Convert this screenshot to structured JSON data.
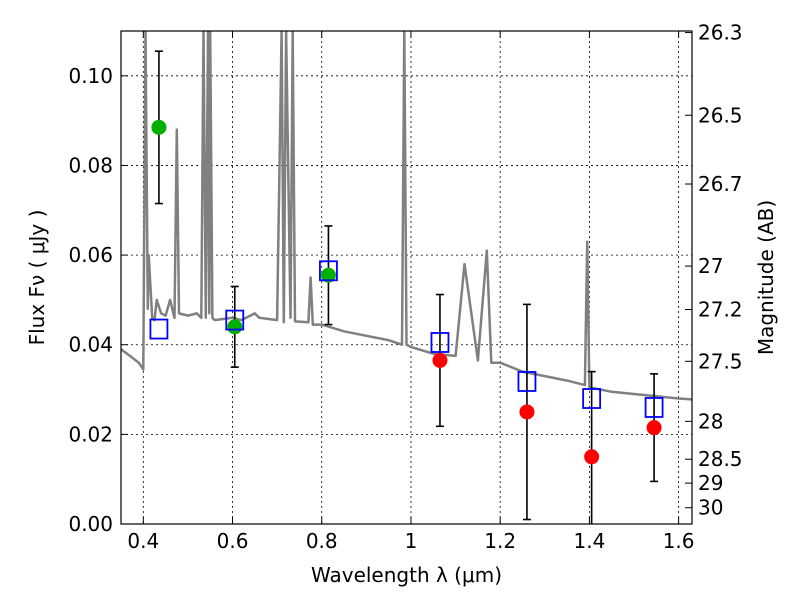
{
  "chart_data": {
    "type": "scatter",
    "title": "",
    "xlabel": "Wavelength  λ (μm)",
    "ylabel": "Flux  Fν  ( μJy )",
    "y2label": "Magnitude (AB)",
    "xlim": [
      0.35,
      1.63
    ],
    "ylim": [
      0.0,
      0.11
    ],
    "grid": true,
    "legend": "none",
    "x_ticks": [
      0.4,
      0.6,
      0.8,
      1.0,
      1.2,
      1.4,
      1.6
    ],
    "x_tick_labels": [
      "0.4",
      "0.6",
      "0.8",
      "1",
      "1.2",
      "1.4",
      "1.6"
    ],
    "y_ticks": [
      0.0,
      0.02,
      0.04,
      0.06,
      0.08,
      0.1
    ],
    "y_tick_labels": [
      "0.00",
      "0.02",
      "0.04",
      "0.06",
      "0.08",
      "0.10"
    ],
    "y2_ticks": [
      26.3,
      26.5,
      26.7,
      27,
      27.2,
      27.5,
      28,
      28.5,
      29,
      30
    ],
    "y2_tick_labels": [
      "26.3",
      "26.5",
      "26.7",
      "27",
      "27.2",
      "27.5",
      "28",
      "28.5",
      "29",
      "30"
    ],
    "series": [
      {
        "type": "line",
        "color": "#808080",
        "x": [
          0.35,
          0.37,
          0.39,
          0.4,
          0.405,
          0.41,
          0.412,
          0.42,
          0.425,
          0.43,
          0.44,
          0.45,
          0.46,
          0.47,
          0.475,
          0.48,
          0.5,
          0.52,
          0.53,
          0.535,
          0.54,
          0.545,
          0.548,
          0.55,
          0.555,
          0.56,
          0.6,
          0.62,
          0.65,
          0.66,
          0.7,
          0.71,
          0.715,
          0.72,
          0.73,
          0.735,
          0.74,
          0.77,
          0.775,
          0.78,
          0.8,
          0.85,
          0.9,
          0.95,
          0.98,
          0.985,
          0.99,
          1.0,
          1.05,
          1.1,
          1.12,
          1.15,
          1.17,
          1.18,
          1.2,
          1.25,
          1.3,
          1.35,
          1.39,
          1.395,
          1.4,
          1.45,
          1.5,
          1.55,
          1.6,
          1.63
        ],
        "y": [
          0.039,
          0.0375,
          0.036,
          0.0345,
          0.11,
          0.048,
          0.06,
          0.046,
          0.0455,
          0.05,
          0.047,
          0.0465,
          0.05,
          0.046,
          0.088,
          0.047,
          0.0465,
          0.047,
          0.046,
          0.11,
          0.046,
          0.11,
          0.047,
          0.11,
          0.046,
          0.0455,
          0.046,
          0.0455,
          0.047,
          0.046,
          0.0455,
          0.11,
          0.045,
          0.11,
          0.046,
          0.11,
          0.0452,
          0.045,
          0.055,
          0.0445,
          0.0445,
          0.043,
          0.042,
          0.041,
          0.04,
          0.11,
          0.04,
          0.0395,
          0.038,
          0.0375,
          0.058,
          0.0365,
          0.061,
          0.036,
          0.036,
          0.034,
          0.033,
          0.032,
          0.031,
          0.063,
          0.0305,
          0.0295,
          0.029,
          0.0285,
          0.028,
          0.0278
        ]
      },
      {
        "type": "scatter",
        "marker": "circle",
        "color": "#00b000",
        "x": [
          0.435,
          0.605,
          0.815
        ],
        "y": [
          0.0885,
          0.044,
          0.0555
        ],
        "yerr": [
          0.017,
          0.009,
          0.011
        ]
      },
      {
        "type": "scatter",
        "marker": "circle",
        "color": "#ff0000",
        "x": [
          1.065,
          1.26,
          1.405,
          1.545
        ],
        "y": [
          0.0365,
          0.025,
          0.015,
          0.0215
        ],
        "yerr": [
          0.0147,
          0.024,
          0.019,
          0.012
        ]
      },
      {
        "type": "scatter",
        "marker": "square-open",
        "color": "#0000ff",
        "x": [
          0.435,
          0.605,
          0.815,
          1.065,
          1.26,
          1.405,
          1.545
        ],
        "y": [
          0.0435,
          0.0455,
          0.0565,
          0.0405,
          0.0318,
          0.028,
          0.026
        ]
      }
    ]
  }
}
